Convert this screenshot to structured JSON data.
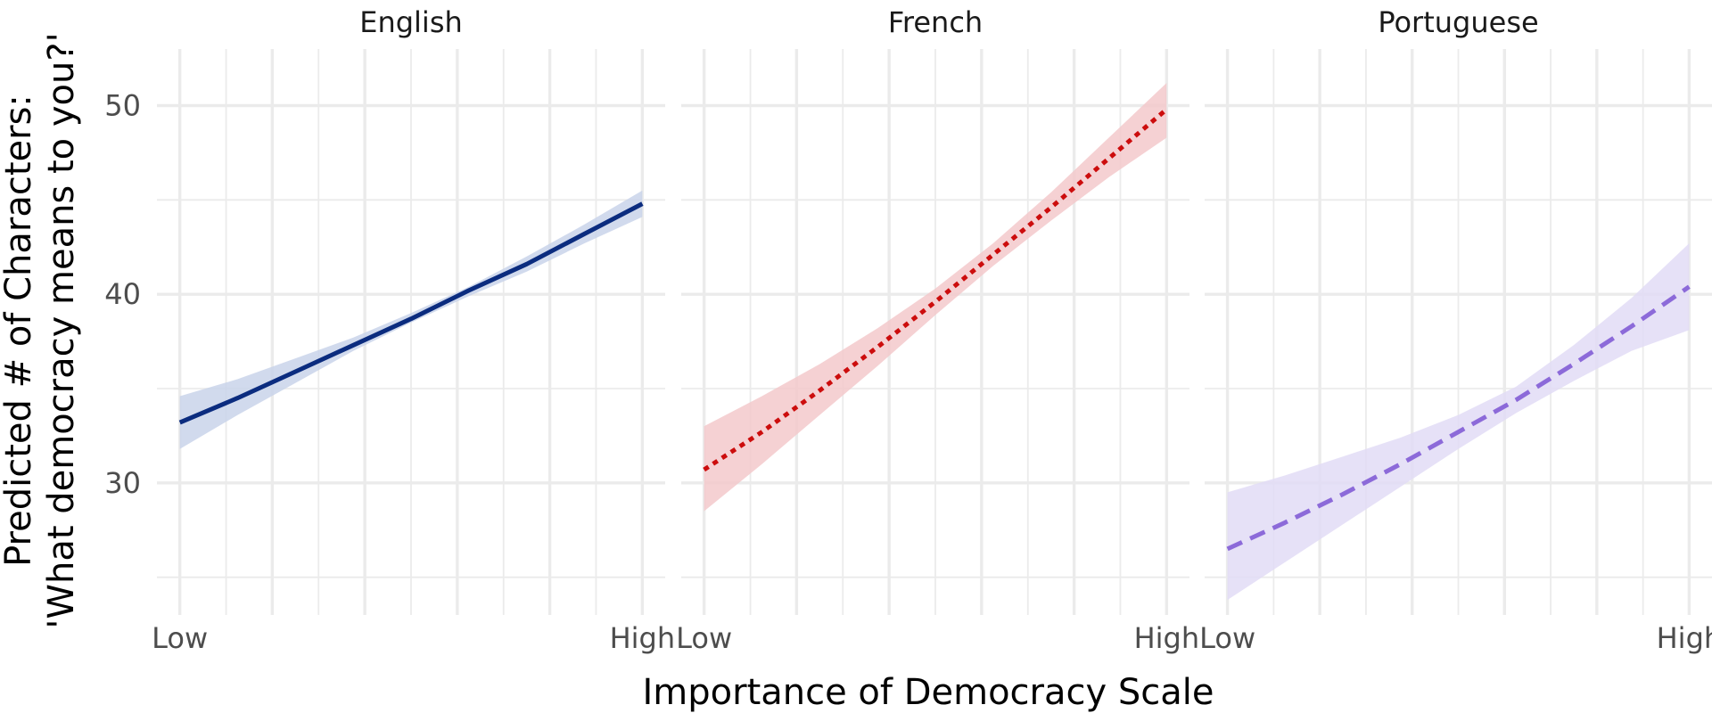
{
  "chart_data": {
    "type": "line",
    "xlabel": "Importance of Democracy Scale",
    "ylabel_line1": "Predicted # of Characters:",
    "ylabel_line2": "'What democracy means to you?'",
    "ylim": [
      23,
      53
    ],
    "yticks": [
      30,
      40,
      50
    ],
    "xlim": [
      0,
      1
    ],
    "xticks": [
      {
        "value": 0,
        "label": "Low"
      },
      {
        "value": 1,
        "label": "High"
      }
    ],
    "grid": true,
    "panels": [
      {
        "label": "English",
        "color": "#0b2c7f",
        "ribbon_color": "#c9d3ea",
        "line_style": "solid",
        "x": [
          0,
          0.125,
          0.25,
          0.375,
          0.5,
          0.625,
          0.75,
          0.875,
          1
        ],
        "fit": [
          33.2,
          34.5,
          35.9,
          37.3,
          38.7,
          40.2,
          41.6,
          43.2,
          44.8
        ],
        "lower": [
          31.8,
          33.6,
          35.3,
          37.0,
          38.5,
          39.9,
          41.2,
          42.7,
          44.1
        ],
        "upper": [
          34.6,
          35.5,
          36.6,
          37.7,
          39.0,
          40.4,
          42.0,
          43.7,
          45.5
        ]
      },
      {
        "label": "French",
        "color": "#cc0d0d",
        "ribbon_color": "#f3c9cb",
        "line_style": "dotted",
        "x": [
          0,
          0.125,
          0.25,
          0.375,
          0.5,
          0.625,
          0.75,
          0.875,
          1
        ],
        "fit": [
          30.7,
          32.7,
          34.9,
          37.2,
          39.6,
          42.1,
          44.6,
          47.2,
          49.8
        ],
        "lower": [
          28.5,
          31.0,
          33.6,
          36.2,
          38.9,
          41.5,
          43.9,
          46.2,
          48.3
        ],
        "upper": [
          33.0,
          34.6,
          36.3,
          38.2,
          40.3,
          42.7,
          45.4,
          48.3,
          51.2
        ]
      },
      {
        "label": "Portuguese",
        "color": "#8c6ad9",
        "ribbon_color": "#e2dcf6",
        "line_style": "dashed",
        "x": [
          0,
          0.125,
          0.25,
          0.375,
          0.5,
          0.625,
          0.75,
          0.875,
          1
        ],
        "fit": [
          26.5,
          27.9,
          29.4,
          31.0,
          32.7,
          34.4,
          36.3,
          38.3,
          40.4
        ],
        "lower": [
          23.8,
          25.8,
          27.8,
          29.8,
          31.8,
          33.7,
          35.4,
          37.0,
          38.1
        ],
        "upper": [
          29.5,
          30.4,
          31.4,
          32.4,
          33.6,
          35.1,
          37.3,
          39.8,
          42.7
        ]
      }
    ]
  }
}
